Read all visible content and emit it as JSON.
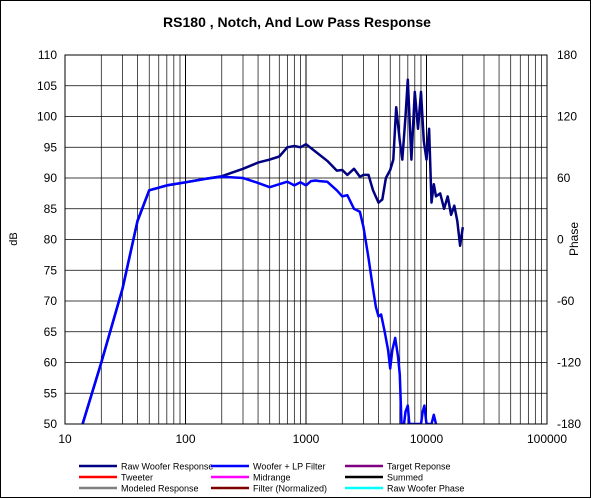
{
  "chart_data": {
    "type": "line",
    "title": "RS180 , Notch,  And Low Pass Response",
    "xlabel": "",
    "ylabel": "dB",
    "y2label": "Phase",
    "xscale": "log",
    "xlim": [
      10,
      100000
    ],
    "ylim": [
      50,
      110
    ],
    "y2lim": [
      -180,
      180
    ],
    "grid": true,
    "legend_position": "bottom",
    "xticks": [
      "10",
      "100",
      "1000",
      "10000",
      "100000"
    ],
    "yticks": [
      "50",
      "55",
      "60",
      "65",
      "70",
      "75",
      "80",
      "85",
      "90",
      "95",
      "100",
      "105",
      "110"
    ],
    "y2ticks": [
      "-180",
      "-120",
      "-60",
      "0",
      "60",
      "120",
      "180"
    ],
    "legend": [
      {
        "name": "Raw Woofer Response",
        "color": "#000080"
      },
      {
        "name": "Woofer + LP Filter",
        "color": "#0000ff"
      },
      {
        "name": "Target Reponse",
        "color": "#800080"
      },
      {
        "name": "Tweeter",
        "color": "#ff0000"
      },
      {
        "name": "Midrange",
        "color": "#ff00ff"
      },
      {
        "name": "Summed",
        "color": "#000000"
      },
      {
        "name": "Modeled Response",
        "color": "#808080"
      },
      {
        "name": "Filter (Normalized)",
        "color": "#800000"
      },
      {
        "name": "Raw Woofer Phase",
        "color": "#00ffff"
      }
    ],
    "series": [
      {
        "name": "Raw Woofer Response",
        "color": "#000080",
        "x": [
          14,
          20,
          30,
          40,
          50,
          70,
          100,
          150,
          200,
          300,
          400,
          500,
          600,
          700,
          800,
          900,
          1000,
          1200,
          1500,
          1800,
          2000,
          2200,
          2500,
          2800,
          3000,
          3300,
          3600,
          4000,
          4300,
          4600,
          5000,
          5300,
          5600,
          6000,
          6300,
          6700,
          7000,
          7500,
          8000,
          8500,
          9000,
          9500,
          10000,
          10500,
          11000,
          11500,
          12000,
          13000,
          14000,
          15000,
          16000,
          17000,
          18000,
          19000,
          20000
        ],
        "values": [
          50,
          60,
          72,
          83,
          88,
          88.8,
          89.3,
          89.9,
          90.3,
          91.5,
          92.5,
          93,
          93.5,
          95,
          95.2,
          95,
          95.5,
          94.3,
          92.8,
          91.2,
          91.3,
          90.5,
          91.5,
          90.2,
          90.5,
          90.5,
          88,
          86,
          86.5,
          90,
          91.3,
          93,
          101.5,
          96,
          93,
          100,
          106,
          93,
          104,
          98,
          104,
          96,
          93,
          98,
          86,
          89,
          87,
          87.5,
          85,
          87,
          84,
          85.5,
          83,
          79,
          82
        ]
      },
      {
        "name": "Woofer + LP Filter",
        "color": "#0000ff",
        "x": [
          14,
          20,
          30,
          40,
          50,
          70,
          100,
          150,
          200,
          300,
          400,
          500,
          600,
          700,
          800,
          900,
          1000,
          1100,
          1200,
          1300,
          1500,
          1800,
          2000,
          2200,
          2500,
          2800,
          3000,
          3300,
          3600,
          3800,
          4000,
          4200,
          4500,
          4800,
          5000,
          5200,
          5500,
          5800,
          6000,
          6200,
          6500,
          6700,
          7000,
          7200,
          7500,
          8000,
          8300,
          8600,
          9000,
          9300,
          9600,
          10000,
          10500,
          11000,
          11500,
          12000
        ],
        "values": [
          50,
          60,
          72,
          83,
          88,
          88.8,
          89.3,
          89.9,
          90.2,
          90,
          89.2,
          88.5,
          89,
          89.4,
          88.8,
          89.3,
          88.8,
          89.5,
          89.6,
          89.5,
          89.4,
          88,
          87,
          87.2,
          85,
          84.5,
          82,
          77,
          72,
          69,
          67.5,
          67.8,
          65,
          62,
          59,
          62,
          64,
          61,
          58,
          50,
          50,
          52,
          53,
          50,
          50,
          50,
          50,
          50,
          50,
          52,
          53,
          50,
          50,
          50,
          51.5,
          50
        ]
      }
    ]
  }
}
